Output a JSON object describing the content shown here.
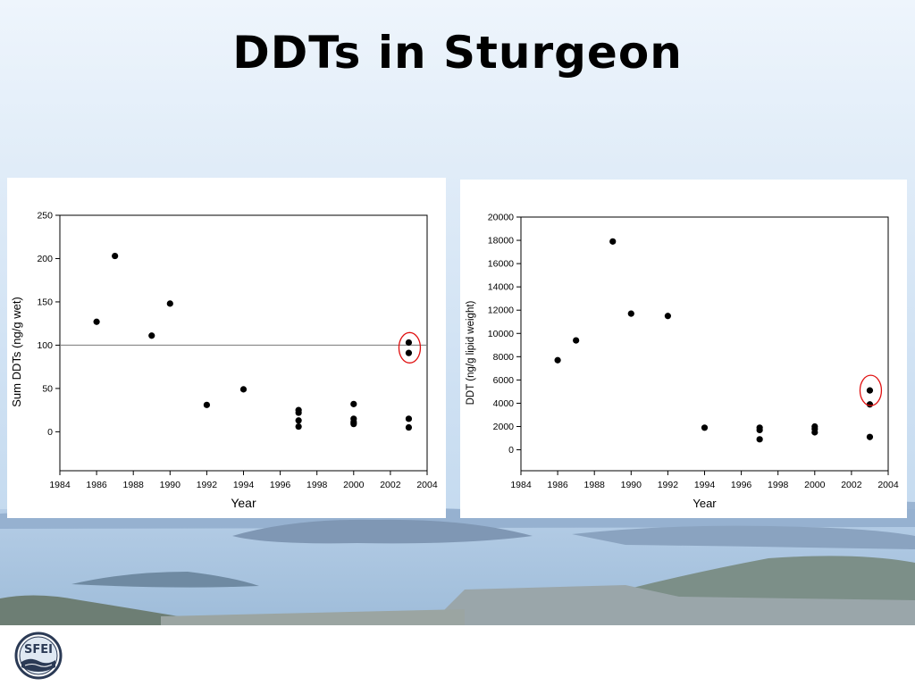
{
  "slide": {
    "title": "DDTs in Sturgeon"
  },
  "logo": {
    "text": "SFEI"
  },
  "chart_data": [
    {
      "type": "scatter",
      "title": "",
      "xlabel": "Year",
      "ylabel": "Sum DDTs (ng/g wet)",
      "xlim": [
        1984,
        2004
      ],
      "ylim": [
        -45,
        250
      ],
      "xticks": [
        1984,
        1986,
        1988,
        1990,
        1992,
        1994,
        1996,
        1998,
        2000,
        2002,
        2004
      ],
      "yticks": [
        0,
        50,
        100,
        150,
        200,
        250
      ],
      "reference_line_y": 100,
      "highlight": {
        "x": 2003,
        "y": 97
      },
      "points": [
        {
          "x": 1986,
          "y": 127
        },
        {
          "x": 1987,
          "y": 203
        },
        {
          "x": 1989,
          "y": 111
        },
        {
          "x": 1990,
          "y": 148
        },
        {
          "x": 1992,
          "y": 31
        },
        {
          "x": 1994,
          "y": 49
        },
        {
          "x": 1997,
          "y": 25
        },
        {
          "x": 1997,
          "y": 22
        },
        {
          "x": 1997,
          "y": 13
        },
        {
          "x": 1997,
          "y": 6
        },
        {
          "x": 2000,
          "y": 32
        },
        {
          "x": 2000,
          "y": 15
        },
        {
          "x": 2000,
          "y": 11
        },
        {
          "x": 2000,
          "y": 9
        },
        {
          "x": 2003,
          "y": 103
        },
        {
          "x": 2003,
          "y": 91
        },
        {
          "x": 2003,
          "y": 15
        },
        {
          "x": 2003,
          "y": 5
        }
      ],
      "grid": false
    },
    {
      "type": "scatter",
      "title": "",
      "xlabel": "Year",
      "ylabel": "DDT (ng/g lipid weight)",
      "xlim": [
        1984,
        2004
      ],
      "ylim": [
        -1800,
        20000
      ],
      "xticks": [
        1984,
        1986,
        1988,
        1990,
        1992,
        1994,
        1996,
        1998,
        2000,
        2002,
        2004
      ],
      "yticks": [
        0,
        2000,
        4000,
        6000,
        8000,
        10000,
        12000,
        14000,
        16000,
        18000,
        20000
      ],
      "highlight": {
        "x": 2003,
        "y": 5100
      },
      "points": [
        {
          "x": 1986,
          "y": 7700
        },
        {
          "x": 1987,
          "y": 9400
        },
        {
          "x": 1989,
          "y": 17900
        },
        {
          "x": 1990,
          "y": 11700
        },
        {
          "x": 1992,
          "y": 11500
        },
        {
          "x": 1994,
          "y": 1900
        },
        {
          "x": 1997,
          "y": 1900
        },
        {
          "x": 1997,
          "y": 1700
        },
        {
          "x": 1997,
          "y": 900
        },
        {
          "x": 2000,
          "y": 2000
        },
        {
          "x": 2000,
          "y": 1800
        },
        {
          "x": 2000,
          "y": 1500
        },
        {
          "x": 2003,
          "y": 5100
        },
        {
          "x": 2003,
          "y": 3900
        },
        {
          "x": 2003,
          "y": 1100
        }
      ],
      "grid": false
    }
  ]
}
